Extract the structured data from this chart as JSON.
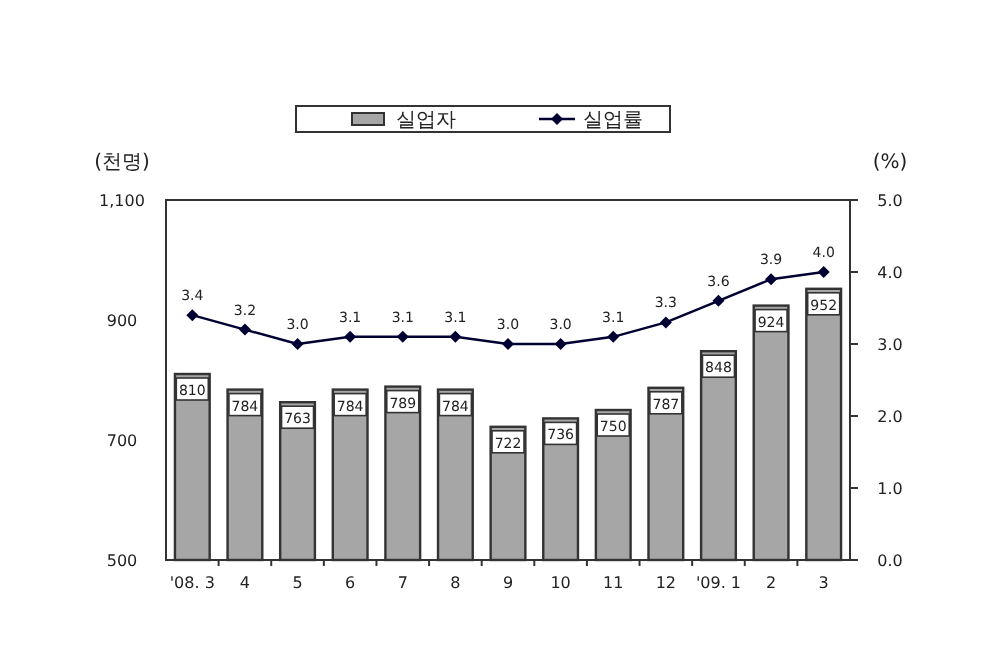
{
  "chart_data": {
    "type": "bar",
    "categories": [
      "'08. 3",
      "4",
      "5",
      "6",
      "7",
      "8",
      "9",
      "10",
      "11",
      "12",
      "'09. 1",
      "2",
      "3"
    ],
    "series": [
      {
        "name": "실업자",
        "color": "#a6a6a6",
        "values": [
          810,
          784,
          763,
          784,
          789,
          784,
          722,
          736,
          750,
          787,
          848,
          924,
          952
        ]
      },
      {
        "name": "실업률",
        "type": "line",
        "axis": "y2",
        "color": "#000033",
        "marker": "diamond",
        "values": [
          3.4,
          3.2,
          3.0,
          3.1,
          3.1,
          3.1,
          3.0,
          3.0,
          3.1,
          3.3,
          3.6,
          3.9,
          4.0
        ],
        "value_labels": [
          "3.4",
          "3.2",
          "3.0",
          "3.1",
          "3.1",
          "3.1",
          "3.0",
          "3.0",
          "3.1",
          "3.3",
          "3.6",
          "3.9",
          "4.0"
        ]
      }
    ],
    "ylabel": "(천명)",
    "y2label": "(%)",
    "ylim": [
      500,
      1100
    ],
    "yticks": [
      500,
      700,
      900,
      {
        "value": 1100,
        "label": "1,100"
      }
    ],
    "y2lim": [
      0,
      5
    ],
    "y2ticks": [
      {
        "value": 0,
        "label": "0.0"
      },
      {
        "value": 1,
        "label": "1.0"
      },
      {
        "value": 2,
        "label": "2.0"
      },
      {
        "value": 3,
        "label": "3.0"
      },
      {
        "value": 4,
        "label": "4.0"
      },
      {
        "value": 5,
        "label": "5.0"
      }
    ],
    "data_labels": true,
    "legend": "top",
    "grid": false
  }
}
